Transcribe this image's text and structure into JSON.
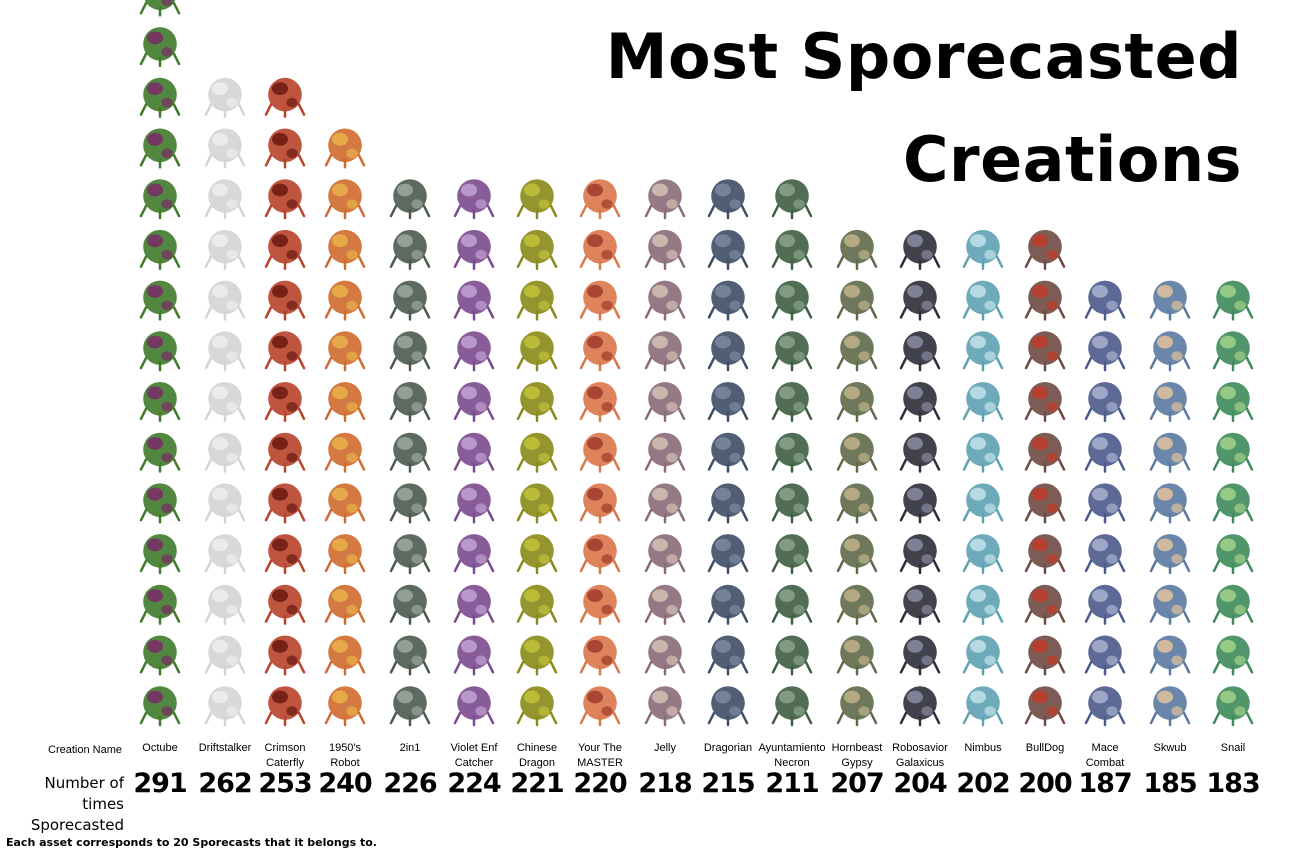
{
  "title_line1": "Most Sporecasted",
  "title_line2": "Creations",
  "row_label_names": "Creation Name",
  "row_label_values_line1": "Number of times",
  "row_label_values_line2": "Sporecasted",
  "footnote": "Each asset corresponds to 20 Sporecasts that it belongs to.",
  "units_per_icon": 20,
  "chart_data": {
    "type": "bar",
    "style": "pictograph",
    "categories": [
      "Octube",
      "Driftstalker",
      "Crimson Caterfly",
      "1950's Robot",
      "2in1",
      "Violet Enf Catcher",
      "Chinese Dragon",
      "Your The MASTER",
      "Jelly",
      "Dragorian",
      "Ayuntamiento Necron",
      "Hornbeast Gypsy",
      "Robosavior Galaxicus",
      "Nimbus",
      "BullDog",
      "Mace Combat",
      "Skwub",
      "Snail"
    ],
    "label_lines": [
      [
        "Octube"
      ],
      [
        "Driftstalker"
      ],
      [
        "Crimson",
        "Caterfly"
      ],
      [
        "1950's",
        "Robot"
      ],
      [
        "2in1"
      ],
      [
        "Violet Enf",
        "Catcher"
      ],
      [
        "Chinese",
        "Dragon"
      ],
      [
        "Your The",
        "MASTER"
      ],
      [
        "Jelly"
      ],
      [
        "Dragorian"
      ],
      [
        "Ayuntamiento",
        "Necron"
      ],
      [
        "Hornbeast",
        "Gypsy"
      ],
      [
        "Robosavior",
        "Galaxicus"
      ],
      [
        "Nimbus"
      ],
      [
        "BullDog"
      ],
      [
        "Mace",
        "Combat"
      ],
      [
        "Skwub"
      ],
      [
        "Snail"
      ]
    ],
    "values": [
      291,
      262,
      253,
      240,
      226,
      224,
      221,
      220,
      218,
      215,
      211,
      207,
      204,
      202,
      200,
      187,
      185,
      183
    ],
    "icon_colors": [
      "#3f7a2a",
      "#d4d4d4",
      "#b8422a",
      "#d06a2e",
      "#4a5a4e",
      "#7a4a8e",
      "#8a8a1a",
      "#d9774a",
      "#8a6a7a",
      "#3e4e66",
      "#3e5e42",
      "#5e6a4a",
      "#2e2e3a",
      "#5ea2b2",
      "#6e4a42",
      "#4a5a8a",
      "#5a7aa2",
      "#3e8a5a"
    ],
    "icon_accents": [
      "#7a2a6a",
      "#eeeeee",
      "#6a1a12",
      "#e8b24a",
      "#9aa89e",
      "#c2a2d2",
      "#c2c23a",
      "#a03a2a",
      "#d2c2b2",
      "#7a8aa2",
      "#8aa28a",
      "#c2b28a",
      "#8a8aa2",
      "#c2e2ea",
      "#c23a2a",
      "#aab2d2",
      "#e2c29a",
      "#a2d28a"
    ],
    "ylim": [
      0,
      300
    ]
  }
}
